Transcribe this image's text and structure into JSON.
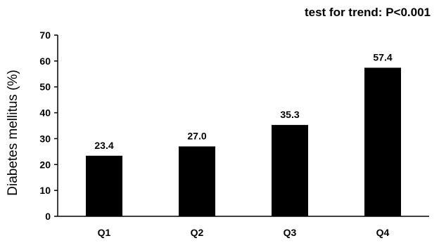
{
  "chart_data": {
    "type": "bar",
    "categories": [
      "Q1",
      "Q2",
      "Q3",
      "Q4"
    ],
    "values": [
      23.4,
      27.0,
      35.3,
      57.4
    ],
    "value_labels": [
      "23.4",
      "27.0",
      "35.3",
      "57.4"
    ],
    "title": "",
    "xlabel": "",
    "ylabel": "Diabetes mellitus (%)",
    "ylim": [
      0,
      70
    ],
    "yticks": [
      0,
      10,
      20,
      30,
      40,
      50,
      60,
      70
    ],
    "annotation": "test for trend: P<0.001",
    "bar_color": "#000000",
    "grid": false,
    "legend": "none"
  }
}
